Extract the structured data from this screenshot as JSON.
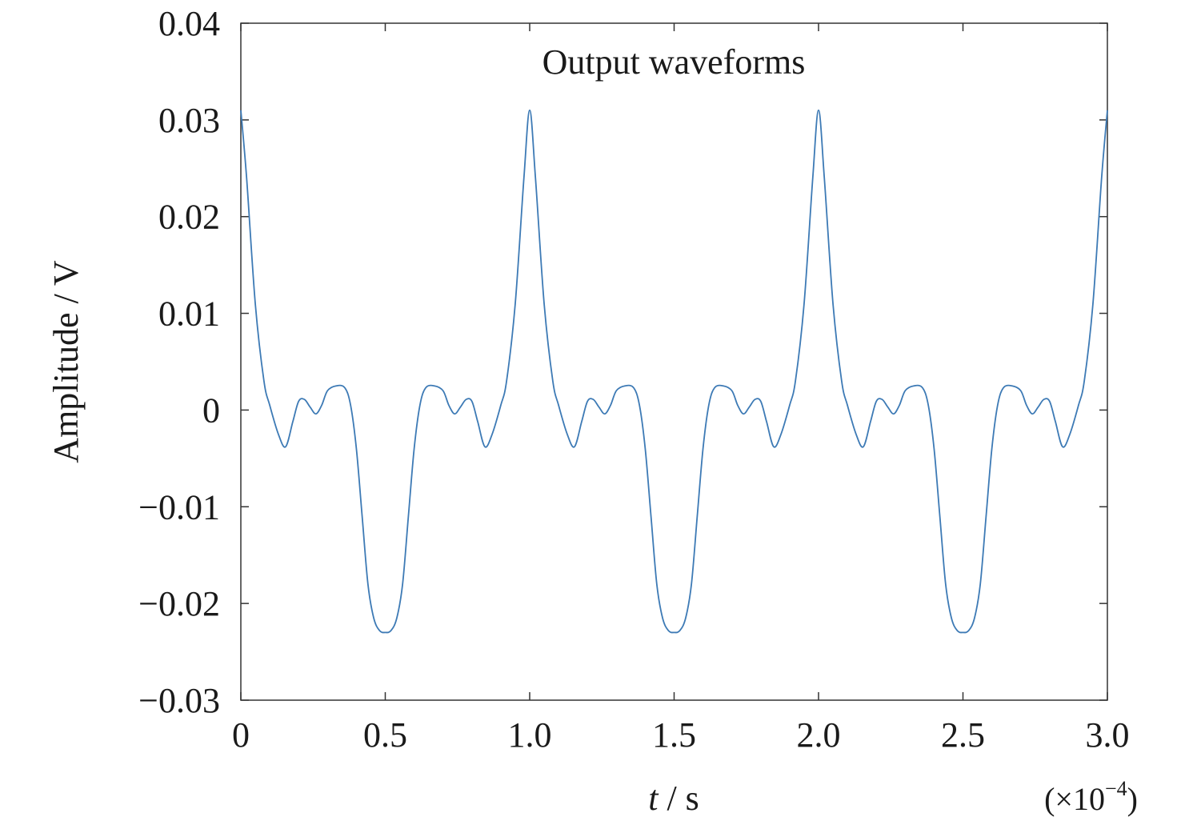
{
  "chart_data": {
    "type": "line",
    "title": "Output waveforms",
    "xlabel_italic": "t",
    "xlabel_rest": " / s",
    "ylabel": "Amplitude / V",
    "x_multiplier_text": "(×10",
    "x_multiplier_exp": "−4",
    "x_multiplier_close": ")",
    "xlim": [
      0,
      3.0
    ],
    "ylim": [
      -0.03,
      0.04
    ],
    "x_ticks": [
      0,
      0.5,
      1.0,
      1.5,
      2.0,
      2.5,
      3.0
    ],
    "x_tick_labels": [
      "0",
      "0.5",
      "1.0",
      "1.5",
      "2.0",
      "2.5",
      "3.0"
    ],
    "y_ticks": [
      -0.03,
      -0.02,
      -0.01,
      0,
      0.01,
      0.02,
      0.03,
      0.04
    ],
    "y_tick_labels": [
      "−0.03",
      "−0.02",
      "−0.01",
      "0",
      "0.01",
      "0.02",
      "0.03",
      "0.04"
    ],
    "grid": false,
    "line_color": "#3d7ab5",
    "period_x_units": 1.0,
    "series": [
      {
        "x": [
          0,
          0.02,
          0.05,
          0.08,
          0.1,
          0.13,
          0.155,
          0.18,
          0.2,
          0.22,
          0.24,
          0.26,
          0.28,
          0.3,
          0.33,
          0.36,
          0.38,
          0.4,
          0.42,
          0.44,
          0.46,
          0.48,
          0.5,
          0.52,
          0.54,
          0.56,
          0.58,
          0.6,
          0.62,
          0.64,
          0.67,
          0.7,
          0.72,
          0.74,
          0.76,
          0.78,
          0.8,
          0.82,
          0.845,
          0.87,
          0.9,
          0.92,
          0.95,
          0.98,
          1.0
        ],
        "y": [
          0.031,
          0.024,
          0.011,
          0.003,
          0.0005,
          -0.0025,
          -0.0038,
          -0.0012,
          0.0009,
          0.0011,
          0.0003,
          -0.0004,
          0.0005,
          0.002,
          0.0025,
          0.0023,
          0.0005,
          -0.004,
          -0.011,
          -0.018,
          -0.0215,
          -0.0228,
          -0.023,
          -0.0228,
          -0.0215,
          -0.018,
          -0.011,
          -0.004,
          0.0005,
          0.0023,
          0.0025,
          0.002,
          0.0005,
          -0.0004,
          0.0003,
          0.0011,
          0.0009,
          -0.0012,
          -0.0038,
          -0.0025,
          0.0005,
          0.003,
          0.011,
          0.024,
          0.031
        ]
      }
    ]
  }
}
